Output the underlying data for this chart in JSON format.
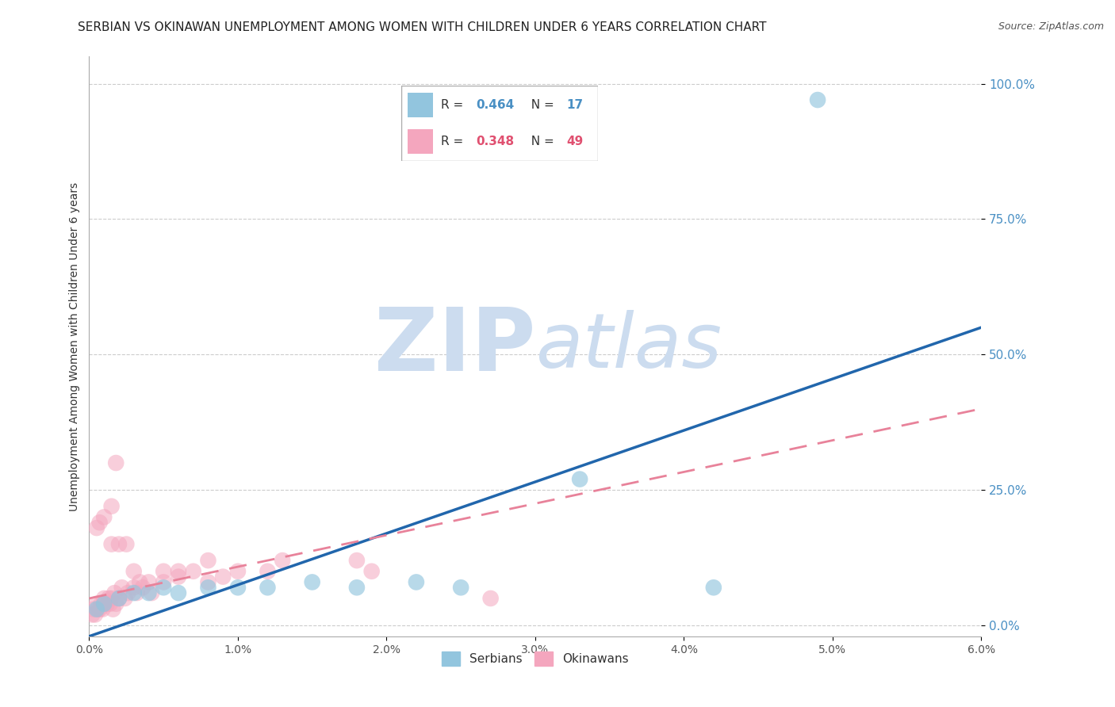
{
  "title": "SERBIAN VS OKINAWAN UNEMPLOYMENT AMONG WOMEN WITH CHILDREN UNDER 6 YEARS CORRELATION CHART",
  "source": "Source: ZipAtlas.com",
  "ylabel": "Unemployment Among Women with Children Under 6 years",
  "xlim": [
    0.0,
    0.06
  ],
  "ylim": [
    -0.02,
    1.05
  ],
  "xticks": [
    0.0,
    0.01,
    0.02,
    0.03,
    0.04,
    0.05,
    0.06
  ],
  "xticklabels": [
    "0.0%",
    "1.0%",
    "2.0%",
    "3.0%",
    "4.0%",
    "5.0%",
    "6.0%"
  ],
  "yticks": [
    0.0,
    0.25,
    0.5,
    0.75,
    1.0
  ],
  "yticklabels": [
    "0.0%",
    "25.0%",
    "50.0%",
    "75.0%",
    "100.0%"
  ],
  "serbian_color": "#92c5de",
  "okinawan_color": "#f4a6be",
  "serbian_line_color": "#2166ac",
  "okinawan_line_color": "#e8829a",
  "serbian_R": 0.464,
  "serbian_N": 17,
  "okinawan_R": 0.348,
  "okinawan_N": 49,
  "serbian_line": [
    [
      0.0,
      -0.02
    ],
    [
      0.06,
      0.55
    ]
  ],
  "okinawan_line": [
    [
      0.0,
      0.05
    ],
    [
      0.06,
      0.4
    ]
  ],
  "serbian_points": [
    [
      0.0005,
      0.03
    ],
    [
      0.001,
      0.04
    ],
    [
      0.002,
      0.05
    ],
    [
      0.003,
      0.06
    ],
    [
      0.004,
      0.06
    ],
    [
      0.005,
      0.07
    ],
    [
      0.006,
      0.06
    ],
    [
      0.008,
      0.07
    ],
    [
      0.01,
      0.07
    ],
    [
      0.012,
      0.07
    ],
    [
      0.015,
      0.08
    ],
    [
      0.018,
      0.07
    ],
    [
      0.022,
      0.08
    ],
    [
      0.025,
      0.07
    ],
    [
      0.033,
      0.27
    ],
    [
      0.042,
      0.07
    ],
    [
      0.049,
      0.97
    ]
  ],
  "okinawan_points": [
    [
      0.0002,
      0.02
    ],
    [
      0.0003,
      0.03
    ],
    [
      0.0004,
      0.02
    ],
    [
      0.0005,
      0.04
    ],
    [
      0.0006,
      0.03
    ],
    [
      0.0007,
      0.03
    ],
    [
      0.0008,
      0.04
    ],
    [
      0.0009,
      0.03
    ],
    [
      0.001,
      0.05
    ],
    [
      0.0012,
      0.04
    ],
    [
      0.0013,
      0.05
    ],
    [
      0.0014,
      0.04
    ],
    [
      0.0015,
      0.05
    ],
    [
      0.0016,
      0.03
    ],
    [
      0.0017,
      0.06
    ],
    [
      0.0018,
      0.04
    ],
    [
      0.002,
      0.05
    ],
    [
      0.0022,
      0.07
    ],
    [
      0.0024,
      0.05
    ],
    [
      0.0026,
      0.06
    ],
    [
      0.003,
      0.07
    ],
    [
      0.0032,
      0.06
    ],
    [
      0.0034,
      0.08
    ],
    [
      0.0036,
      0.07
    ],
    [
      0.004,
      0.08
    ],
    [
      0.0042,
      0.06
    ],
    [
      0.005,
      0.08
    ],
    [
      0.006,
      0.09
    ],
    [
      0.007,
      0.1
    ],
    [
      0.008,
      0.08
    ],
    [
      0.009,
      0.09
    ],
    [
      0.001,
      0.2
    ],
    [
      0.0015,
      0.22
    ],
    [
      0.0018,
      0.3
    ],
    [
      0.003,
      0.1
    ],
    [
      0.005,
      0.1
    ],
    [
      0.006,
      0.1
    ],
    [
      0.0005,
      0.18
    ],
    [
      0.0007,
      0.19
    ],
    [
      0.0015,
      0.15
    ],
    [
      0.002,
      0.15
    ],
    [
      0.0025,
      0.15
    ],
    [
      0.008,
      0.12
    ],
    [
      0.01,
      0.1
    ],
    [
      0.012,
      0.1
    ],
    [
      0.013,
      0.12
    ],
    [
      0.018,
      0.12
    ],
    [
      0.019,
      0.1
    ],
    [
      0.027,
      0.05
    ]
  ],
  "watermark_zip": "ZIP",
  "watermark_atlas": "atlas",
  "watermark_color": "#ccdcef",
  "background_color": "#ffffff",
  "grid_color": "#cccccc",
  "title_fontsize": 11,
  "axis_label_fontsize": 10,
  "tick_fontsize": 10,
  "legend_fontsize": 12
}
